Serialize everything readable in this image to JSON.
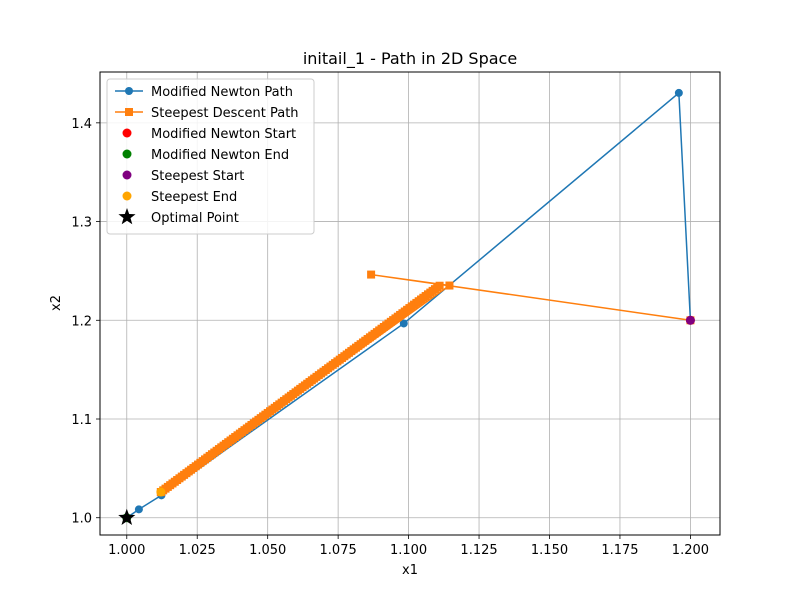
{
  "chart_data": {
    "type": "line",
    "title": "initail_1 - Path in 2D Space",
    "xlabel": "x1",
    "ylabel": "x2",
    "xlim": [
      0.9905,
      1.2105
    ],
    "ylim": [
      0.9825,
      1.4515
    ],
    "xticks": [
      1.0,
      1.025,
      1.05,
      1.075,
      1.1,
      1.125,
      1.15,
      1.175,
      1.2
    ],
    "xtick_labels": [
      "1.000",
      "1.025",
      "1.050",
      "1.075",
      "1.100",
      "1.125",
      "1.150",
      "1.175",
      "1.200"
    ],
    "yticks": [
      1.0,
      1.1,
      1.2,
      1.3,
      1.4
    ],
    "ytick_labels": [
      "1.0",
      "1.1",
      "1.2",
      "1.3",
      "1.4"
    ],
    "grid": true,
    "legend_position": "upper-left",
    "series": [
      {
        "name": "Modified Newton Path",
        "kind": "line",
        "marker": "circle",
        "color": "#1f77b4",
        "x": [
          1.2,
          1.1959,
          1.0983,
          1.0123,
          1.0043,
          1.0
        ],
        "y": [
          1.2,
          1.4303,
          1.1968,
          1.0227,
          1.0085,
          1.0
        ]
      },
      {
        "name": "Steepest Descent Path",
        "kind": "line",
        "marker": "square",
        "color": "#ff7f0e",
        "x": [
          1.2,
          1.0867,
          1.1145,
          1.0121
        ],
        "y": [
          1.2,
          1.2463,
          1.2352,
          1.026
        ],
        "dense_segment": {
          "x_start": 1.0121,
          "y_start": 1.026,
          "x_end": 1.111,
          "y_end": 1.235,
          "count": 120
        }
      },
      {
        "name": "Modified Newton Start",
        "kind": "point",
        "color": "#ff0000",
        "x": [
          1.2
        ],
        "y": [
          1.2
        ]
      },
      {
        "name": "Modified Newton End",
        "kind": "point",
        "color": "#008000",
        "x": [
          1.0
        ],
        "y": [
          1.0
        ]
      },
      {
        "name": "Steepest Start",
        "kind": "point",
        "color": "#800080",
        "x": [
          1.2
        ],
        "y": [
          1.2
        ]
      },
      {
        "name": "Steepest End",
        "kind": "point",
        "color": "#ffa500",
        "x": [
          1.0121
        ],
        "y": [
          1.026
        ]
      },
      {
        "name": "Optimal Point",
        "kind": "star",
        "color": "#000000",
        "x": [
          1.0
        ],
        "y": [
          1.0
        ]
      }
    ]
  }
}
